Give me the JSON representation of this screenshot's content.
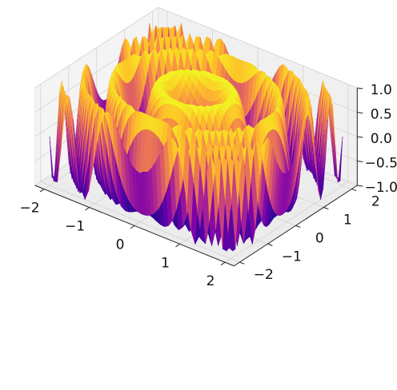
{
  "chart_data": {
    "type": "surface3d",
    "title": "",
    "xlabel": "",
    "ylabel": "",
    "zlabel": "",
    "colormap": "plasma",
    "function": "z = sin(pi * (x^2 + y^2))",
    "xlim": [
      -2.2,
      2.2
    ],
    "ylim": [
      -2.2,
      2.2
    ],
    "zlim": [
      -1,
      1
    ],
    "x_ticks": [
      -2,
      -1,
      0,
      1,
      2
    ],
    "y_ticks": [
      -2,
      -1,
      0,
      1,
      2
    ],
    "z_ticks": [
      -1.0,
      -0.5,
      0.0,
      0.5,
      1.0
    ],
    "x_tick_labels": [
      "−2",
      "−1",
      "0",
      "1",
      "2"
    ],
    "y_tick_labels": [
      "−2",
      "−1",
      "0",
      "1",
      "2"
    ],
    "z_tick_labels": [
      "−1.0",
      "−0.5",
      "0.0",
      "0.5",
      "1.0"
    ],
    "grid": true,
    "pane_color": "#f2f2f2",
    "grid_color": "#d6d6d6"
  }
}
